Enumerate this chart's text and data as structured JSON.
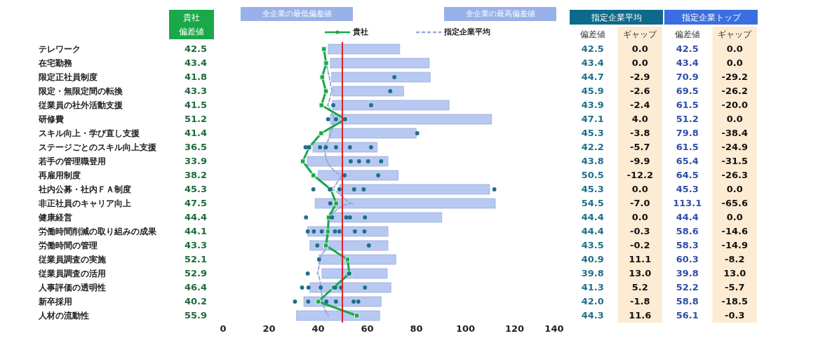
{
  "chart_data": [
    {
      "type": "bar",
      "orientation": "horizontal",
      "categories": [
        "テレワーク",
        "在宅勤務",
        "限定正社員制度",
        "限定・無限定間の転換",
        "従業員の社外活動支援",
        "研修費",
        "スキル向上・学び直し支援",
        "ステージごとのスキル向上支援",
        "若手の管理職登用",
        "再雇用制度",
        "社内公募・社内ＦＡ制度",
        "非正社員のキャリア向上",
        "健康経営",
        "労働時間削減の取り組みの成果",
        "労働時間の管理",
        "従業員調査の実施",
        "従業員調査の活用",
        "人事評価の透明性",
        "新卒採用",
        "人材の流動性"
      ],
      "xlim": [
        0,
        140
      ],
      "xticks": [
        0,
        20,
        40,
        60,
        80,
        100,
        120,
        140
      ],
      "legend": "top",
      "annotations": [
        "貴社",
        "偏差値",
        "全企業の最低偏差値",
        "全企業の最高偏差値"
      ],
      "ref_lines": [
        {
          "axis": "x",
          "value": 50,
          "color": "#e0202a"
        }
      ],
      "series": [
        {
          "color": "#b7c8f3",
          "base": [
            44.2,
            45.1,
            45.6,
            46.0,
            46.0,
            45.1,
            44.6,
            38.0,
            35.7,
            40.1,
            48.8,
            38.9,
            44.6,
            35.9,
            36.8,
            40.5,
            41.7,
            36.8,
            34.3,
            31.3
          ],
          "values": [
            29.2,
            40.3,
            40.2,
            29.0,
            47.5,
            65.7,
            35.5,
            26.2,
            32.9,
            32.7,
            61.2,
            73.4,
            45.9,
            32.7,
            31.8,
            31.3,
            26.6,
            33.0,
            31.5,
            33.9
          ]
        },
        {
          "type": "scatter",
          "color": "#1f6f8b",
          "x": [
            "限定正社員制度",
            "限定・無限定間の転換",
            "従業員の社外活動支援",
            "従業員の社外活動支援",
            "研修費",
            "研修費",
            "研修費",
            "スキル向上・学び直し支援",
            "ステージごとのスキル向上支援",
            "ステージごとのスキル向上支援",
            "ステージごとのスキル向上支援",
            "ステージごとのスキル向上支援",
            "ステージごとのスキル向上支援",
            "ステージごとのスキル向上支援",
            "ステージごとのスキル向上支援",
            "若手の管理職登用",
            "若手の管理職登用",
            "若手の管理職登用",
            "若手の管理職登用",
            "再雇用制度",
            "再雇用制度",
            "社内公募・社内ＦＡ制度",
            "社内公募・社内ＦＡ制度",
            "社内公募・社内ＦＡ制度",
            "社内公募・社内ＦＡ制度",
            "社内公募・社内ＦＡ制度",
            "社内公募・社内ＦＡ制度",
            "非正社員のキャリア向上",
            "健康経営",
            "健康経営",
            "健康経営",
            "健康経営",
            "健康経営",
            "労働時間削減の取り組みの成果",
            "労働時間削減の取り組みの成果",
            "労働時間削減の取り組みの成果",
            "労働時間削減の取り組みの成果",
            "労働時間削減の取り組みの成果",
            "労働時間削減の取り組みの成果",
            "労働時間削減の取り組みの成果",
            "労働時間の管理",
            "労働時間の管理",
            "従業員調査の実施",
            "従業員調査の活用",
            "従業員調査の活用",
            "人事評価の透明性",
            "人事評価の透明性",
            "人事評価の透明性",
            "人事評価の透明性",
            "人事評価の透明性",
            "人事評価の透明性",
            "新卒採用",
            "新卒採用",
            "新卒採用",
            "新卒採用",
            "新卒採用",
            "新卒採用"
          ],
          "values": [
            71.2,
            69.5,
            61.7,
            46.3,
            44.2,
            47.4,
            51.0,
            80.5,
            35.0,
            36.4,
            40.9,
            43.3,
            47.4,
            53.1,
            61.7,
            53.4,
            56.8,
            60.5,
            65.8,
            64.6,
            50.9,
            38.2,
            44.9,
            48.8,
            54.8,
            58.7,
            111.9,
            45.1,
            35.2,
            45.8,
            51.6,
            53.1,
            59.2,
            35.9,
            38.4,
            41.6,
            47.0,
            48.8,
            55.1,
            59.0,
            39.8,
            60.8,
            40.5,
            35.9,
            52.7,
            33.6,
            36.2,
            41.2,
            47.1,
            49.5,
            59.2,
            30.7,
            36.1,
            43.5,
            47.4,
            54.6,
            56.5
          ]
        },
        {
          "type": "line",
          "name": "指定企業平均",
          "color": "#9aa8d8",
          "line_style": "dashed",
          "marker": "none",
          "values": [
            42.5,
            43.4,
            44.7,
            45.9,
            43.9,
            47.1,
            45.3,
            42.2,
            43.8,
            50.5,
            45.3,
            54.5,
            44.4,
            44.4,
            43.5,
            40.9,
            39.8,
            41.3,
            42.0,
            44.3
          ]
        },
        {
          "type": "line",
          "name": "貴社",
          "color": "#1aa84a",
          "line_style": "solid",
          "marker": "square",
          "values": [
            42.5,
            43.4,
            41.8,
            43.3,
            41.5,
            51.2,
            41.4,
            36.5,
            33.9,
            38.2,
            45.3,
            47.5,
            44.4,
            44.1,
            43.3,
            52.1,
            52.9,
            46.4,
            40.2,
            55.9
          ],
          "value_labels": [
            "42.5",
            "43.4",
            "41.8",
            "43.3",
            "41.5",
            "51.2",
            "41.4",
            "36.5",
            "33.9",
            "38.2",
            "45.3",
            "47.5",
            "44.4",
            "44.1",
            "43.3",
            "52.1",
            "52.9",
            "46.4",
            "40.2",
            "55.9"
          ]
        }
      ]
    },
    {
      "type": "heatmap",
      "data_labels": true,
      "tick_labels": "x",
      "annotations": [
        "指定企業平均",
        "指定企業トップ"
      ],
      "categories": [
        "偏差値",
        "ギャップ",
        "偏差値",
        "ギャップ"
      ],
      "y_categories": [
        "テレワーク",
        "在宅勤務",
        "限定正社員制度",
        "限定・無限定間の転換",
        "従業員の社外活動支援",
        "研修費",
        "スキル向上・学び直し支援",
        "ステージごとのスキル向上支援",
        "若手の管理職登用",
        "再雇用制度",
        "社内公募・社内ＦＡ制度",
        "非正社員のキャリア向上",
        "健康経営",
        "労働時間削減の取り組みの成果",
        "労働時間の管理",
        "従業員調査の実施",
        "従業員調査の活用",
        "人事評価の透明性",
        "新卒採用",
        "人材の流動性"
      ],
      "cell_labels": [
        [
          "42.5",
          "0.0",
          "42.5",
          "0.0"
        ],
        [
          "43.4",
          "0.0",
          "43.4",
          "0.0"
        ],
        [
          "44.7",
          "-2.9",
          "70.9",
          "-29.2"
        ],
        [
          "45.9",
          "-2.6",
          "69.5",
          "-26.2"
        ],
        [
          "43.9",
          "-2.4",
          "61.5",
          "-20.0"
        ],
        [
          "47.1",
          "4.0",
          "51.2",
          "0.0"
        ],
        [
          "45.3",
          "-3.8",
          "79.8",
          "-38.4"
        ],
        [
          "42.2",
          "-5.7",
          "61.5",
          "-24.9"
        ],
        [
          "43.8",
          "-9.9",
          "65.4",
          "-31.5"
        ],
        [
          "50.5",
          "-12.2",
          "64.5",
          "-26.3"
        ],
        [
          "45.3",
          "0.0",
          "45.3",
          "0.0"
        ],
        [
          "54.5",
          "-7.0",
          "113.1",
          "-65.6"
        ],
        [
          "44.4",
          "0.0",
          "44.4",
          "0.0"
        ],
        [
          "44.4",
          "-0.3",
          "58.6",
          "-14.6"
        ],
        [
          "43.5",
          "-0.2",
          "58.3",
          "-14.9"
        ],
        [
          "40.9",
          "11.1",
          "60.3",
          "-8.2"
        ],
        [
          "39.8",
          "13.0",
          "39.8",
          "13.0"
        ],
        [
          "41.3",
          "5.2",
          "52.2",
          "-5.7"
        ],
        [
          "42.0",
          "-1.8",
          "58.8",
          "-18.5"
        ],
        [
          "44.3",
          "11.6",
          "56.1",
          "-0.3"
        ]
      ],
      "cells": [
        [
          42.5,
          0.0,
          42.5,
          0.0
        ],
        [
          43.4,
          0.0,
          43.4,
          0.0
        ],
        [
          44.7,
          -2.9,
          70.9,
          -29.2
        ],
        [
          45.9,
          -2.6,
          69.5,
          -26.2
        ],
        [
          43.9,
          -2.4,
          61.5,
          -20.0
        ],
        [
          47.1,
          4.0,
          51.2,
          0.0
        ],
        [
          45.3,
          -3.8,
          79.8,
          -38.4
        ],
        [
          42.2,
          -5.7,
          61.5,
          -24.9
        ],
        [
          43.8,
          -9.9,
          65.4,
          -31.5
        ],
        [
          50.5,
          -12.2,
          64.5,
          -26.3
        ],
        [
          45.3,
          0.0,
          45.3,
          0.0
        ],
        [
          54.5,
          -7.0,
          113.1,
          -65.6
        ],
        [
          44.4,
          0.0,
          44.4,
          0.0
        ],
        [
          44.4,
          -0.3,
          58.6,
          -14.6
        ],
        [
          43.5,
          -0.2,
          58.3,
          -14.9
        ],
        [
          40.9,
          11.1,
          60.3,
          -8.2
        ],
        [
          39.8,
          13.0,
          39.8,
          13.0
        ],
        [
          41.3,
          5.2,
          52.2,
          -5.7
        ],
        [
          42.0,
          -1.8,
          58.8,
          -18.5
        ],
        [
          44.3,
          11.6,
          56.1,
          -0.3
        ]
      ]
    }
  ]
}
